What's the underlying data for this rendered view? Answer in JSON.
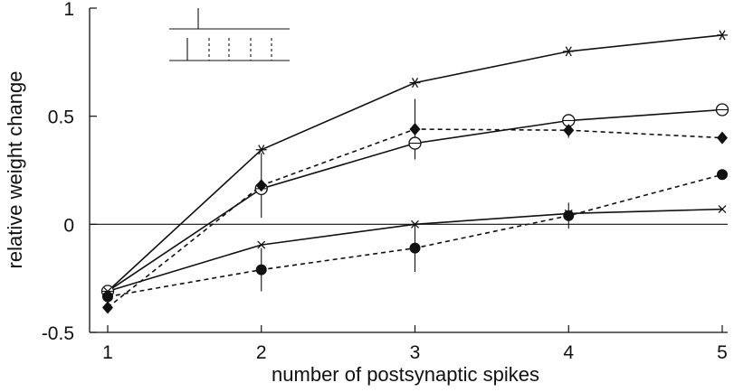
{
  "chart_data": {
    "type": "line",
    "xlabel": "number of postsynaptic spikes",
    "ylabel": "relative weight change",
    "x": [
      1,
      2,
      3,
      4,
      5
    ],
    "xlim": [
      0.95,
      5.05
    ],
    "ylim": [
      -0.5,
      1.0
    ],
    "xticks": [
      "1",
      "2",
      "3",
      "4",
      "5"
    ],
    "yticks": [
      {
        "value": 1.0,
        "label": "1"
      },
      {
        "value": 0.5,
        "label": "0.5"
      },
      {
        "value": 0.0,
        "label": "0"
      },
      {
        "value": -0.5,
        "label": "-0.5"
      }
    ],
    "zero_line": true,
    "grid": false,
    "color": "#111111",
    "series": [
      {
        "marker": "asterisk",
        "line": "solid",
        "values": [
          -0.31,
          0.345,
          0.655,
          0.8,
          0.875
        ]
      },
      {
        "marker": "circle-open",
        "line": "solid",
        "values": [
          -0.31,
          0.165,
          0.375,
          0.48,
          0.53
        ]
      },
      {
        "marker": "diamond-filled",
        "line": "dashed",
        "values": [
          -0.385,
          0.18,
          0.44,
          0.435,
          0.4
        ],
        "error": [
          null,
          0.15,
          0.14,
          0.035,
          null
        ]
      },
      {
        "marker": "cross",
        "line": "solid",
        "values": [
          -0.31,
          -0.095,
          0.0,
          0.05,
          0.07
        ]
      },
      {
        "marker": "circle-filled",
        "line": "dashed",
        "values": [
          -0.335,
          -0.21,
          -0.11,
          0.04,
          0.23
        ],
        "error": [
          null,
          0.1,
          0.11,
          0.06,
          null
        ]
      }
    ]
  }
}
